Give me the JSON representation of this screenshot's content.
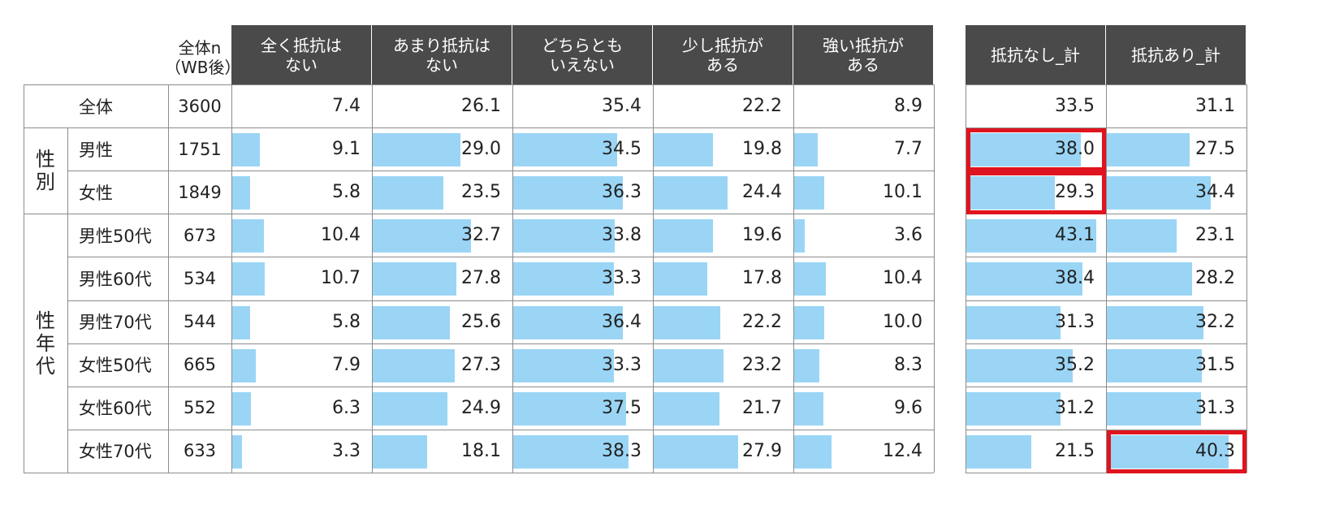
{
  "chart_data": {
    "type": "table",
    "n_header": "全体n\n（WB後）",
    "left_columns": [
      "全く抵抗は\nない",
      "あまり抵抗は\nない",
      "どちらとも\nいえない",
      "少し抵抗が\nある",
      "強い抵抗が\nある"
    ],
    "right_columns": [
      "抵抗なし_計",
      "抵抗あり_計"
    ],
    "groups": [
      {
        "label": "",
        "rows": [
          0
        ]
      },
      {
        "label": "性\n別",
        "rows": [
          1,
          2
        ]
      },
      {
        "label": "性\n年\n代",
        "rows": [
          3,
          4,
          5,
          6,
          7,
          8
        ]
      }
    ],
    "rows": [
      {
        "label": "全体",
        "n": "3600",
        "values": [
          7.4,
          26.1,
          35.4,
          22.2,
          8.9
        ],
        "totals": [
          33.5,
          31.1
        ],
        "bars": false
      },
      {
        "label": "男性",
        "n": "1751",
        "values": [
          9.1,
          29.0,
          34.5,
          19.8,
          7.7
        ],
        "totals": [
          38.0,
          27.5
        ],
        "bars": true
      },
      {
        "label": "女性",
        "n": "1849",
        "values": [
          5.8,
          23.5,
          36.3,
          24.4,
          10.1
        ],
        "totals": [
          29.3,
          34.4
        ],
        "bars": true
      },
      {
        "label": "男性50代",
        "n": "673",
        "values": [
          10.4,
          32.7,
          33.8,
          19.6,
          3.6
        ],
        "totals": [
          43.1,
          23.1
        ],
        "bars": true
      },
      {
        "label": "男性60代",
        "n": "534",
        "values": [
          10.7,
          27.8,
          33.3,
          17.8,
          10.4
        ],
        "totals": [
          38.4,
          28.2
        ],
        "bars": true
      },
      {
        "label": "男性70代",
        "n": "544",
        "values": [
          5.8,
          25.6,
          36.4,
          22.2,
          10.0
        ],
        "totals": [
          31.3,
          32.2
        ],
        "bars": true
      },
      {
        "label": "女性50代",
        "n": "665",
        "values": [
          7.9,
          27.3,
          33.3,
          23.2,
          8.3
        ],
        "totals": [
          35.2,
          31.5
        ],
        "bars": true
      },
      {
        "label": "女性60代",
        "n": "552",
        "values": [
          6.3,
          24.9,
          37.5,
          21.7,
          9.6
        ],
        "totals": [
          31.2,
          31.3
        ],
        "bars": true
      },
      {
        "label": "女性70代",
        "n": "633",
        "values": [
          3.3,
          18.1,
          38.3,
          27.9,
          12.4
        ],
        "totals": [
          21.5,
          40.3
        ],
        "bars": true
      }
    ],
    "value_max": 45,
    "highlights": [
      {
        "row": 1,
        "total": 0
      },
      {
        "row": 2,
        "total": 0
      },
      {
        "row": 8,
        "total": 1
      }
    ],
    "bar_color": "#9ad5f5",
    "header_bg": "#4a4a4a",
    "highlight_color": "#e0141e"
  }
}
